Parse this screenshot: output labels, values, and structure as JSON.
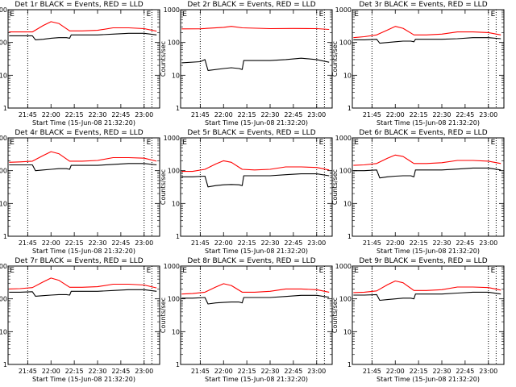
{
  "chart_data": [
    {
      "type": "line",
      "title": "Det 1r BLACK = Events, RED = LLD",
      "xlabel": "Start Time (15-Jun-08 21:32:20)",
      "ylabel": "Counts/sec",
      "xlim": [
        "21:32:20",
        "23:10:00"
      ],
      "ylim": [
        1,
        1000
      ],
      "y_scale": "log",
      "x_ticks": [
        "21:45",
        "22:00",
        "22:15",
        "22:30",
        "22:45",
        "23:00"
      ],
      "y_ticks": [
        "1",
        "10",
        "100",
        "1000"
      ],
      "vlines": [
        "21:45",
        "23:00",
        "23:05"
      ],
      "markers": [
        {
          "text": "E",
          "x": "21:33"
        },
        {
          "text": "E",
          "x": "23:01"
        }
      ],
      "series": [
        {
          "role": "lld",
          "color": "#ff0000",
          "x": [
            "21:33",
            "21:40",
            "21:48",
            "21:55",
            "22:00",
            "22:05",
            "22:12",
            "22:20",
            "22:30",
            "22:40",
            "22:50",
            "23:00",
            "23:08"
          ],
          "y": [
            210,
            210,
            210,
            330,
            430,
            380,
            225,
            225,
            235,
            280,
            280,
            265,
            220
          ]
        },
        {
          "role": "events",
          "color": "#000000",
          "x": [
            "21:33",
            "21:40",
            "21:48",
            "21:50",
            "21:55",
            "22:00",
            "22:05",
            "22:10",
            "22:12",
            "22:13",
            "22:20",
            "22:30",
            "22:40",
            "22:50",
            "23:00",
            "23:08"
          ],
          "y": [
            160,
            160,
            160,
            120,
            125,
            135,
            140,
            140,
            135,
            170,
            170,
            170,
            180,
            190,
            190,
            170
          ]
        }
      ]
    },
    {
      "type": "line",
      "title": "Det 2r BLACK = Events, RED = LLD",
      "xlabel": "Start Time (15-Jun-08 21:32:20)",
      "ylabel": "Counts/sec",
      "xlim": [
        "21:32:20",
        "23:10:00"
      ],
      "ylim": [
        1,
        1000
      ],
      "y_scale": "log",
      "x_ticks": [
        "21:45",
        "22:00",
        "22:15",
        "22:30",
        "22:45",
        "23:00"
      ],
      "y_ticks": [
        "1",
        "10",
        "100",
        "1000"
      ],
      "vlines": [
        "21:45",
        "23:00",
        "23:05"
      ],
      "markers": [
        {
          "text": "E",
          "x": "21:33"
        },
        {
          "text": "E",
          "x": "23:01"
        }
      ],
      "series": [
        {
          "role": "lld",
          "color": "#ff0000",
          "x": [
            "21:33",
            "21:45",
            "22:00",
            "22:05",
            "22:12",
            "22:30",
            "22:45",
            "23:00",
            "23:08"
          ],
          "y": [
            260,
            262,
            290,
            310,
            280,
            265,
            268,
            265,
            250
          ]
        },
        {
          "role": "events",
          "color": "#000000",
          "x": [
            "21:33",
            "21:45",
            "21:48",
            "21:50",
            "22:00",
            "22:05",
            "22:10",
            "22:12",
            "22:13",
            "22:20",
            "22:30",
            "22:40",
            "22:50",
            "23:00",
            "23:08"
          ],
          "y": [
            24,
            26,
            30,
            14,
            16,
            17,
            16,
            15,
            28,
            28,
            28,
            30,
            33,
            30,
            25
          ]
        }
      ]
    },
    {
      "type": "line",
      "title": "Det 3r BLACK = Events, RED = LLD",
      "xlabel": "Start Time (15-Jun-08 21:32:20)",
      "ylabel": "Counts/sec",
      "xlim": [
        "21:32:20",
        "23:10:00"
      ],
      "ylim": [
        1,
        1000
      ],
      "y_scale": "log",
      "x_ticks": [
        "21:45",
        "22:00",
        "22:15",
        "22:30",
        "22:45",
        "23:00"
      ],
      "y_ticks": [
        "1",
        "10",
        "100",
        "1000"
      ],
      "vlines": [
        "21:45",
        "23:00",
        "23:05"
      ],
      "markers": [
        {
          "text": "E",
          "x": "21:33"
        },
        {
          "text": "E",
          "x": "23:01"
        }
      ],
      "series": [
        {
          "role": "lld",
          "color": "#ff0000",
          "x": [
            "21:33",
            "21:40",
            "21:48",
            "21:55",
            "22:00",
            "22:05",
            "22:12",
            "22:20",
            "22:30",
            "22:40",
            "22:50",
            "23:00",
            "23:08"
          ],
          "y": [
            140,
            150,
            170,
            240,
            310,
            270,
            170,
            170,
            180,
            210,
            210,
            200,
            170
          ]
        },
        {
          "role": "events",
          "color": "#000000",
          "x": [
            "21:33",
            "21:40",
            "21:48",
            "21:50",
            "21:55",
            "22:00",
            "22:05",
            "22:10",
            "22:12",
            "22:13",
            "22:20",
            "22:30",
            "22:40",
            "22:50",
            "23:00",
            "23:08"
          ],
          "y": [
            120,
            120,
            125,
            95,
            100,
            105,
            110,
            110,
            105,
            125,
            125,
            125,
            130,
            140,
            140,
            130
          ]
        }
      ]
    },
    {
      "type": "line",
      "title": "Det 4r BLACK = Events, RED = LLD",
      "xlabel": "Start Time (15-Jun-08 21:32:20)",
      "ylabel": "Counts/sec",
      "xlim": [
        "21:32:20",
        "23:10:00"
      ],
      "ylim": [
        1,
        1000
      ],
      "y_scale": "log",
      "x_ticks": [
        "21:45",
        "22:00",
        "22:15",
        "22:30",
        "22:45",
        "23:00"
      ],
      "y_ticks": [
        "1",
        "10",
        "100",
        "1000"
      ],
      "vlines": [
        "21:45",
        "23:00",
        "23:05"
      ],
      "markers": [
        {
          "text": "E",
          "x": "21:33"
        },
        {
          "text": "E",
          "x": "23:01"
        }
      ],
      "series": [
        {
          "role": "lld",
          "color": "#ff0000",
          "x": [
            "21:33",
            "21:40",
            "21:48",
            "21:55",
            "22:00",
            "22:05",
            "22:12",
            "22:20",
            "22:30",
            "22:40",
            "22:50",
            "23:00",
            "23:08"
          ],
          "y": [
            180,
            185,
            195,
            290,
            380,
            330,
            195,
            195,
            205,
            250,
            250,
            240,
            195
          ]
        },
        {
          "role": "events",
          "color": "#000000",
          "x": [
            "21:33",
            "21:40",
            "21:48",
            "21:50",
            "21:55",
            "22:00",
            "22:05",
            "22:10",
            "22:12",
            "22:13",
            "22:20",
            "22:30",
            "22:40",
            "22:50",
            "23:00",
            "23:08"
          ],
          "y": [
            150,
            150,
            150,
            100,
            105,
            110,
            115,
            115,
            110,
            145,
            145,
            145,
            155,
            165,
            165,
            150
          ]
        }
      ]
    },
    {
      "type": "line",
      "title": "Det 5r BLACK = Events, RED = LLD",
      "xlabel": "Start Time (15-Jun-08 21:32:20)",
      "ylabel": "Counts/sec",
      "xlim": [
        "21:32:20",
        "23:10:00"
      ],
      "ylim": [
        1,
        1000
      ],
      "y_scale": "log",
      "x_ticks": [
        "21:45",
        "22:00",
        "22:15",
        "22:30",
        "22:45",
        "23:00"
      ],
      "y_ticks": [
        "1",
        "10",
        "100",
        "1000"
      ],
      "vlines": [
        "21:45",
        "23:00",
        "23:05"
      ],
      "markers": [
        {
          "text": "E",
          "x": "21:33"
        },
        {
          "text": "E",
          "x": "23:01"
        }
      ],
      "series": [
        {
          "role": "lld",
          "color": "#ff0000",
          "x": [
            "21:33",
            "21:40",
            "21:48",
            "21:55",
            "22:00",
            "22:05",
            "22:12",
            "22:20",
            "22:30",
            "22:40",
            "22:50",
            "23:00",
            "23:08"
          ],
          "y": [
            95,
            95,
            110,
            160,
            200,
            180,
            110,
            105,
            110,
            130,
            130,
            125,
            105
          ]
        },
        {
          "role": "events",
          "color": "#000000",
          "x": [
            "21:33",
            "21:40",
            "21:48",
            "21:50",
            "21:55",
            "22:00",
            "22:05",
            "22:10",
            "22:12",
            "22:13",
            "22:20",
            "22:30",
            "22:40",
            "22:50",
            "23:00",
            "23:08"
          ],
          "y": [
            65,
            65,
            68,
            32,
            35,
            37,
            38,
            37,
            35,
            70,
            70,
            70,
            75,
            80,
            80,
            70
          ]
        }
      ]
    },
    {
      "type": "line",
      "title": "Det 6r BLACK = Events, RED = LLD",
      "xlabel": "Start Time (15-Jun-08 21:32:20)",
      "ylabel": "Counts/sec",
      "xlim": [
        "21:32:20",
        "23:10:00"
      ],
      "ylim": [
        1,
        1000
      ],
      "y_scale": "log",
      "x_ticks": [
        "21:45",
        "22:00",
        "22:15",
        "22:30",
        "22:45",
        "23:00"
      ],
      "y_ticks": [
        "1",
        "10",
        "100",
        "1000"
      ],
      "vlines": [
        "21:45",
        "23:00",
        "23:05"
      ],
      "markers": [
        {
          "text": "E",
          "x": "21:33"
        },
        {
          "text": "E",
          "x": "23:01"
        }
      ],
      "series": [
        {
          "role": "lld",
          "color": "#ff0000",
          "x": [
            "21:33",
            "21:40",
            "21:48",
            "21:55",
            "22:00",
            "22:05",
            "22:12",
            "22:20",
            "22:30",
            "22:40",
            "22:50",
            "23:00",
            "23:08"
          ],
          "y": [
            145,
            150,
            165,
            240,
            300,
            270,
            165,
            165,
            175,
            205,
            205,
            195,
            165
          ]
        },
        {
          "role": "events",
          "color": "#000000",
          "x": [
            "21:33",
            "21:40",
            "21:48",
            "21:50",
            "21:55",
            "22:00",
            "22:05",
            "22:10",
            "22:12",
            "22:13",
            "22:20",
            "22:30",
            "22:40",
            "22:50",
            "23:00",
            "23:08"
          ],
          "y": [
            100,
            100,
            105,
            60,
            65,
            68,
            70,
            70,
            65,
            105,
            105,
            105,
            112,
            120,
            120,
            105
          ]
        }
      ]
    },
    {
      "type": "line",
      "title": "Det 7r BLACK = Events, RED = LLD",
      "xlabel": "Start Time (15-Jun-08 21:32:20)",
      "ylabel": "Counts/sec",
      "xlim": [
        "21:32:20",
        "23:10:00"
      ],
      "ylim": [
        1,
        1000
      ],
      "y_scale": "log",
      "x_ticks": [
        "21:45",
        "22:00",
        "22:15",
        "22:30",
        "22:45",
        "23:00"
      ],
      "y_ticks": [
        "1",
        "10",
        "100",
        "1000"
      ],
      "vlines": [
        "21:45",
        "23:00",
        "23:05"
      ],
      "markers": [
        {
          "text": "E",
          "x": "21:33"
        },
        {
          "text": "E",
          "x": "23:01"
        }
      ],
      "series": [
        {
          "role": "lld",
          "color": "#ff0000",
          "x": [
            "21:33",
            "21:40",
            "21:48",
            "21:55",
            "22:00",
            "22:05",
            "22:12",
            "22:20",
            "22:30",
            "22:40",
            "22:50",
            "23:00",
            "23:08"
          ],
          "y": [
            200,
            205,
            220,
            330,
            430,
            370,
            225,
            225,
            235,
            280,
            280,
            265,
            215
          ]
        },
        {
          "role": "events",
          "color": "#000000",
          "x": [
            "21:33",
            "21:40",
            "21:48",
            "21:50",
            "21:55",
            "22:00",
            "22:05",
            "22:10",
            "22:12",
            "22:13",
            "22:20",
            "22:30",
            "22:40",
            "22:50",
            "23:00",
            "23:08"
          ],
          "y": [
            160,
            160,
            165,
            120,
            125,
            130,
            135,
            135,
            130,
            170,
            170,
            170,
            180,
            190,
            190,
            170
          ]
        }
      ]
    },
    {
      "type": "line",
      "title": "Det 8r BLACK = Events, RED = LLD",
      "xlabel": "Start Time (15-Jun-08 21:32:20)",
      "ylabel": "Counts/sec",
      "xlim": [
        "21:32:20",
        "23:10:00"
      ],
      "ylim": [
        1,
        1000
      ],
      "y_scale": "log",
      "x_ticks": [
        "21:45",
        "22:00",
        "22:15",
        "22:30",
        "22:45",
        "23:00"
      ],
      "y_ticks": [
        "1",
        "10",
        "100",
        "1000"
      ],
      "vlines": [
        "21:45",
        "23:00",
        "23:05"
      ],
      "markers": [
        {
          "text": "E",
          "x": "21:33"
        },
        {
          "text": "E",
          "x": "23:01"
        }
      ],
      "series": [
        {
          "role": "lld",
          "color": "#ff0000",
          "x": [
            "21:33",
            "21:40",
            "21:48",
            "21:55",
            "22:00",
            "22:05",
            "22:12",
            "22:20",
            "22:30",
            "22:40",
            "22:50",
            "23:00",
            "23:08"
          ],
          "y": [
            140,
            145,
            160,
            230,
            290,
            255,
            160,
            160,
            170,
            200,
            200,
            190,
            160
          ]
        },
        {
          "role": "events",
          "color": "#000000",
          "x": [
            "21:33",
            "21:40",
            "21:48",
            "21:50",
            "21:55",
            "22:00",
            "22:05",
            "22:10",
            "22:12",
            "22:13",
            "22:20",
            "22:30",
            "22:40",
            "22:50",
            "23:00",
            "23:08"
          ],
          "y": [
            105,
            105,
            110,
            70,
            75,
            78,
            80,
            80,
            75,
            110,
            110,
            110,
            118,
            128,
            128,
            112
          ]
        }
      ]
    },
    {
      "type": "line",
      "title": "Det 9r BLACK = Events, RED = LLD",
      "xlabel": "Start Time (15-Jun-08 21:32:20)",
      "ylabel": "Counts/sec",
      "xlim": [
        "21:32:20",
        "23:10:00"
      ],
      "ylim": [
        1,
        1000
      ],
      "y_scale": "log",
      "x_ticks": [
        "21:45",
        "22:00",
        "22:15",
        "22:30",
        "22:45",
        "23:00"
      ],
      "y_ticks": [
        "1",
        "10",
        "100",
        "1000"
      ],
      "vlines": [
        "21:45",
        "23:00",
        "23:05"
      ],
      "markers": [
        {
          "text": "E",
          "x": "21:33"
        },
        {
          "text": "E",
          "x": "23:01"
        }
      ],
      "series": [
        {
          "role": "lld",
          "color": "#ff0000",
          "x": [
            "21:33",
            "21:40",
            "21:48",
            "21:55",
            "22:00",
            "22:05",
            "22:12",
            "22:20",
            "22:30",
            "22:40",
            "22:50",
            "23:00",
            "23:08"
          ],
          "y": [
            155,
            160,
            175,
            270,
            350,
            310,
            180,
            180,
            190,
            230,
            230,
            220,
            185
          ]
        },
        {
          "role": "events",
          "color": "#000000",
          "x": [
            "21:33",
            "21:40",
            "21:48",
            "21:50",
            "21:55",
            "22:00",
            "22:05",
            "22:10",
            "22:12",
            "22:13",
            "22:20",
            "22:30",
            "22:40",
            "22:50",
            "23:00",
            "23:08"
          ],
          "y": [
            130,
            130,
            135,
            90,
            95,
            100,
            105,
            105,
            100,
            140,
            140,
            140,
            150,
            160,
            160,
            140
          ]
        }
      ]
    }
  ]
}
